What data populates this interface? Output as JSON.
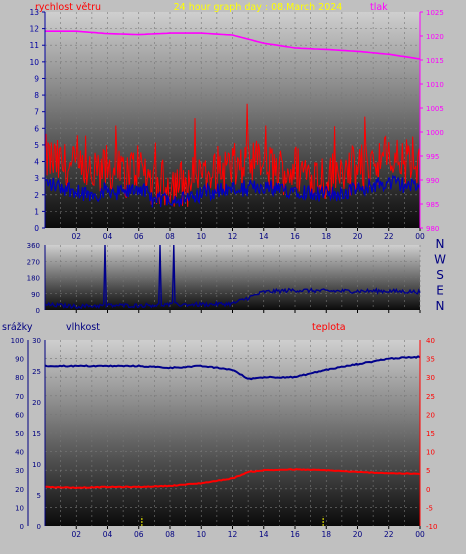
{
  "title": "24 hour graph day : 08.March 2024",
  "panel1": {
    "left_label": "rychlost větru",
    "right_label": "tlak",
    "left_ticks": [
      "0",
      "1",
      "2",
      "3",
      "4",
      "5",
      "6",
      "7",
      "8",
      "9",
      "10",
      "11",
      "12",
      "13"
    ],
    "right_ticks": [
      "980",
      "985",
      "990",
      "995",
      "1000",
      "1005",
      "1010",
      "1015",
      "1020",
      "1025"
    ]
  },
  "panel2": {
    "y_ticks": [
      "0",
      "90",
      "180",
      "270",
      "360"
    ],
    "compass": [
      "N",
      "W",
      "S",
      "E",
      "N"
    ]
  },
  "panel3": {
    "rain_label": "srážky",
    "hum_label": "vlhkost",
    "temp_label": "teplota",
    "rain_ticks": [
      "0",
      "10",
      "20",
      "30",
      "40",
      "50",
      "60",
      "70",
      "80",
      "90",
      "100"
    ],
    "hum_ticks": [
      "0",
      "5",
      "10",
      "15",
      "20",
      "25",
      "30"
    ],
    "temp_ticks": [
      "-10",
      "-5",
      "0",
      "5",
      "10",
      "15",
      "20",
      "25",
      "30",
      "35",
      "40"
    ]
  },
  "x_ticks": [
    "02",
    "04",
    "06",
    "08",
    "10",
    "12",
    "14",
    "16",
    "18",
    "20",
    "22",
    "00"
  ],
  "colors": {
    "wind_gust": "#ff0000",
    "wind_avg": "#0000c0",
    "pressure": "#ff00ff",
    "direction": "#00008b",
    "humidity": "#00008b",
    "temperature": "#ff0000",
    "rain": "#ffff00",
    "left_axis": "#0000a0",
    "right_axis": "#ff00ff",
    "title": "#ffff00"
  },
  "chart_data": [
    {
      "type": "line",
      "series": [
        {
          "name": "rychlost větru",
          "x": [
            0,
            1,
            2,
            3,
            4,
            5,
            6,
            7,
            8,
            9,
            10,
            11,
            12,
            13,
            14,
            15,
            16,
            17,
            18,
            19,
            20,
            21,
            22,
            23,
            24
          ],
          "values": [
            4.2,
            3.8,
            3.5,
            3.0,
            3.6,
            3.1,
            3.8,
            2.5,
            2.8,
            2.6,
            3.2,
            3.5,
            3.6,
            3.7,
            3.9,
            3.4,
            3.6,
            3.3,
            3.1,
            3.3,
            3.5,
            4.0,
            4.2,
            4.0,
            3.6
          ]
        },
        {
          "name": "tlak",
          "x": [
            0,
            2,
            4,
            6,
            8,
            10,
            12,
            14,
            16,
            18,
            20,
            22,
            24
          ],
          "values": [
            1021,
            1021,
            1020.5,
            1020.3,
            1020.6,
            1020.6,
            1020.2,
            1018.5,
            1017.5,
            1017.2,
            1016.8,
            1016.2,
            1015.2
          ]
        }
      ],
      "xlim": [
        0,
        24
      ],
      "ylim": [
        0,
        13
      ]
    },
    {
      "type": "line",
      "series": [
        {
          "name": "direction",
          "x": [
            0,
            2,
            4,
            6,
            8,
            10,
            12,
            14,
            16,
            18,
            20,
            22,
            24
          ],
          "values": [
            30,
            20,
            25,
            25,
            30,
            30,
            35,
            100,
            110,
            105,
            105,
            105,
            100
          ]
        }
      ],
      "xlim": [
        0,
        24
      ],
      "ylim": [
        0,
        360
      ]
    },
    {
      "type": "line",
      "series": [
        {
          "name": "vlhkost",
          "x": [
            0,
            2,
            4,
            6,
            8,
            10,
            12,
            13,
            14,
            16,
            18,
            20,
            22,
            24
          ],
          "values": [
            86,
            86,
            86,
            86,
            85,
            86,
            84,
            79,
            80,
            80,
            84,
            87,
            90,
            91
          ]
        },
        {
          "name": "teplota",
          "x": [
            0,
            2,
            4,
            6,
            8,
            10,
            12,
            13,
            14,
            16,
            18,
            20,
            22,
            24
          ],
          "values": [
            0.5,
            0.3,
            0.5,
            0.5,
            0.8,
            1.5,
            2.8,
            4.5,
            5.0,
            5.2,
            5.0,
            4.5,
            4.2,
            4.0
          ]
        },
        {
          "name": "srážky",
          "x": [
            6.2,
            17.8
          ],
          "values": [
            5,
            5
          ]
        }
      ],
      "xlim": [
        0,
        24
      ],
      "ylim": [
        0,
        100
      ]
    }
  ]
}
